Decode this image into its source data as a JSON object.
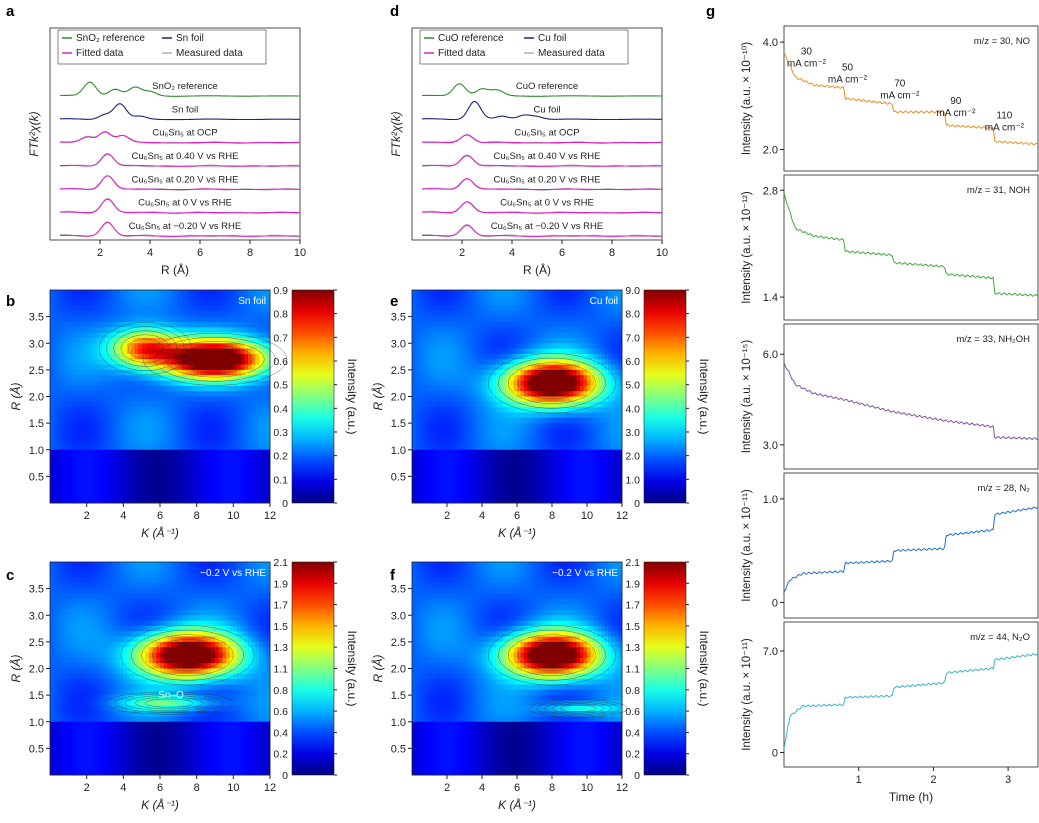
{
  "figure": {
    "panel_labels": [
      "a",
      "b",
      "c",
      "d",
      "e",
      "f",
      "g"
    ]
  },
  "chart_data": [
    {
      "panel": "a",
      "type": "line",
      "xlabel": "R (Å)",
      "ylabel": "FTk²χ(k)",
      "xlim": [
        0,
        10
      ],
      "xticks": [
        2,
        4,
        6,
        8,
        10
      ],
      "legend": [
        {
          "label": "SnO₂ reference",
          "color": "#2e8b2e"
        },
        {
          "label": "Sn foil",
          "color": "#1a237e"
        },
        {
          "label": "Fitted data",
          "color": "#e020c0"
        },
        {
          "label": "Measured data",
          "color": "#b0b0b0"
        }
      ],
      "series": [
        {
          "name": "SnO₂ reference",
          "color": "#2e8b2e",
          "peaks": [
            [
              1.6,
              1.0
            ],
            [
              2.6,
              0.5
            ],
            [
              3.4,
              0.6
            ],
            [
              4.0,
              0.3
            ]
          ]
        },
        {
          "name": "Sn foil",
          "color": "#1a237e",
          "peaks": [
            [
              2.2,
              0.35
            ],
            [
              2.8,
              1.1
            ],
            [
              3.6,
              0.2
            ]
          ]
        },
        {
          "name": "Cu₆Sn₅ at OCP",
          "color": "#e020c0",
          "peaks": [
            [
              1.5,
              0.4
            ],
            [
              2.2,
              0.8
            ],
            [
              2.9,
              0.5
            ]
          ]
        },
        {
          "name": "Cu₆Sn₅ at 0.40 V vs RHE",
          "color": "#e020c0",
          "peaks": [
            [
              2.3,
              0.9
            ]
          ]
        },
        {
          "name": "Cu₆Sn₅ at 0.20 V vs RHE",
          "color": "#e020c0",
          "peaks": [
            [
              2.3,
              1.0
            ]
          ]
        },
        {
          "name": "Cu₆Sn₅ at 0 V vs RHE",
          "color": "#e020c0",
          "peaks": [
            [
              2.3,
              1.0
            ]
          ]
        },
        {
          "name": "Cu₆Sn₅ at −0.20 V vs RHE",
          "color": "#e020c0",
          "peaks": [
            [
              2.3,
              1.0
            ]
          ]
        }
      ]
    },
    {
      "panel": "d",
      "type": "line",
      "xlabel": "R (Å)",
      "ylabel": "FTk²χ(k)",
      "xlim": [
        0,
        10
      ],
      "xticks": [
        2,
        4,
        6,
        8,
        10
      ],
      "legend": [
        {
          "label": "CuO reference",
          "color": "#2e8b2e"
        },
        {
          "label": "Cu foil",
          "color": "#1a237e"
        },
        {
          "label": "Fitted data",
          "color": "#e020c0"
        },
        {
          "label": "Measured data",
          "color": "#b0b0b0"
        }
      ],
      "series": [
        {
          "name": "CuO reference",
          "color": "#2e8b2e",
          "peaks": [
            [
              1.9,
              0.9
            ],
            [
              2.8,
              0.5
            ],
            [
              3.4,
              0.4
            ]
          ]
        },
        {
          "name": "Cu foil",
          "color": "#1a237e",
          "peaks": [
            [
              2.5,
              1.3
            ],
            [
              3.6,
              0.2
            ],
            [
              4.5,
              0.3
            ],
            [
              5.0,
              0.2
            ]
          ]
        },
        {
          "name": "Cu₆Sn₅ at OCP",
          "color": "#e020c0",
          "peaks": [
            [
              2.2,
              0.6
            ]
          ]
        },
        {
          "name": "Cu₆Sn₅ at 0.40 V vs RHE",
          "color": "#e020c0",
          "peaks": [
            [
              2.2,
              0.8
            ]
          ]
        },
        {
          "name": "Cu₆Sn₅ at 0.20 V vs RHE",
          "color": "#e020c0",
          "peaks": [
            [
              2.2,
              0.8
            ]
          ]
        },
        {
          "name": "Cu₆Sn₅ at 0 V vs RHE",
          "color": "#e020c0",
          "peaks": [
            [
              2.2,
              0.8
            ]
          ]
        },
        {
          "name": "Cu₆Sn₅ at −0.20 V vs RHE",
          "color": "#e020c0",
          "peaks": [
            [
              2.2,
              0.8
            ]
          ]
        }
      ]
    },
    {
      "panel": "b",
      "type": "heatmap",
      "annotation": "Sn foil",
      "xlabel": "K (Å⁻¹)",
      "ylabel": "R (Å)",
      "colorbar_label": "Intensity (a.u.)",
      "xlim": [
        0,
        12
      ],
      "ylim": [
        0,
        4
      ],
      "xticks": [
        2,
        4,
        6,
        8,
        10,
        12
      ],
      "yticks": [
        0.5,
        1.0,
        1.5,
        2.0,
        2.5,
        3.0,
        3.5
      ],
      "colorbar_ticks": [
        "0",
        "0.1",
        "0.2",
        "0.3",
        "0.4",
        "0.5",
        "0.6",
        "0.7",
        "0.8",
        "0.9"
      ],
      "zlim": [
        0,
        0.9
      ],
      "blobs": [
        {
          "k": 9.0,
          "r": 2.7,
          "v": 0.9,
          "sk": 2.8,
          "sr": 0.35
        },
        {
          "k": 5.2,
          "r": 2.9,
          "v": 0.55,
          "sk": 1.8,
          "sr": 0.35
        }
      ]
    },
    {
      "panel": "e",
      "type": "heatmap",
      "annotation": "Cu foil",
      "xlabel": "K (Å⁻¹)",
      "ylabel": "R (Å)",
      "colorbar_label": "Intensity (a.u.)",
      "xlim": [
        0,
        12
      ],
      "ylim": [
        0,
        4
      ],
      "xticks": [
        2,
        4,
        6,
        8,
        10,
        12
      ],
      "yticks": [
        0.5,
        1.0,
        1.5,
        2.0,
        2.5,
        3.0,
        3.5
      ],
      "colorbar_ticks": [
        "0",
        "1.0",
        "2.0",
        "3.0",
        "4.0",
        "5.0",
        "6.0",
        "7.0",
        "8.0",
        "9.0"
      ],
      "zlim": [
        0,
        9.0
      ],
      "blobs": [
        {
          "k": 8.0,
          "r": 2.25,
          "v": 9.0,
          "sk": 2.6,
          "sr": 0.4
        }
      ]
    },
    {
      "panel": "c",
      "type": "heatmap",
      "annotation": "−0.2 V vs RHE",
      "inner_label": "Sn–O",
      "xlabel": "K (Å⁻¹)",
      "ylabel": "R (Å)",
      "colorbar_label": "Intensity (a.u.)",
      "xlim": [
        0,
        12
      ],
      "ylim": [
        0,
        4
      ],
      "xticks": [
        2,
        4,
        6,
        8,
        10,
        12
      ],
      "yticks": [
        0.5,
        1.0,
        1.5,
        2.0,
        2.5,
        3.0,
        3.5
      ],
      "colorbar_ticks": [
        "0",
        "0.2",
        "0.4",
        "0.6",
        "0.8",
        "1.1",
        "1.3",
        "1.5",
        "1.7",
        "1.9",
        "2.1"
      ],
      "zlim": [
        0,
        2.1
      ],
      "blobs": [
        {
          "k": 7.5,
          "r": 2.25,
          "v": 2.1,
          "sk": 2.6,
          "sr": 0.4
        },
        {
          "k": 6.5,
          "r": 1.35,
          "v": 0.5,
          "sk": 2.5,
          "sr": 0.15
        }
      ]
    },
    {
      "panel": "f",
      "type": "heatmap",
      "annotation": "−0.2 V vs RHE",
      "xlabel": "K (Å⁻¹)",
      "ylabel": "R (Å)",
      "colorbar_label": "Intensity (a.u.)",
      "xlim": [
        0,
        12
      ],
      "ylim": [
        0,
        4
      ],
      "xticks": [
        2,
        4,
        6,
        8,
        10,
        12
      ],
      "yticks": [
        0.5,
        1.0,
        1.5,
        2.0,
        2.5,
        3.0,
        3.5
      ],
      "colorbar_ticks": [
        "0",
        "0.2",
        "0.4",
        "0.6",
        "0.8",
        "1.1",
        "1.3",
        "1.5",
        "1.7",
        "1.9",
        "2.1"
      ],
      "zlim": [
        0,
        2.1
      ],
      "blobs": [
        {
          "k": 8.0,
          "r": 2.25,
          "v": 2.1,
          "sk": 2.6,
          "sr": 0.4
        },
        {
          "k": 9.5,
          "r": 1.25,
          "v": 0.45,
          "sk": 2.0,
          "sr": 0.12
        }
      ]
    },
    {
      "panel": "g",
      "type": "line",
      "xlabel": "Time (h)",
      "xlim": [
        0,
        3.4
      ],
      "xticks": [
        1,
        2,
        3
      ],
      "subplots": [
        {
          "label": "m/z = 30, NO",
          "ylabel": "Intensity (a.u. × 10⁻¹⁰)",
          "color": "#f08c1e",
          "ylim": [
            1.6,
            4.3
          ],
          "yticks": [
            2.0,
            4.0
          ],
          "x": [
            0,
            0.15,
            0.4,
            0.8,
            0.82,
            1.45,
            1.47,
            2.15,
            2.17,
            2.8,
            2.82,
            3.4
          ],
          "y": [
            3.8,
            3.35,
            3.2,
            3.15,
            2.95,
            2.85,
            2.7,
            2.7,
            2.45,
            2.4,
            2.15,
            2.1
          ],
          "annotations": [
            "30 mA cm⁻²",
            "50 mA cm⁻²",
            "70 mA cm⁻²",
            "90 mA cm⁻²",
            "110 mA cm⁻²"
          ]
        },
        {
          "label": "m/z = 31, NOH",
          "ylabel": "Intensity (a.u. × 10⁻¹²)",
          "color": "#3aaa3a",
          "ylim": [
            1.1,
            3.0
          ],
          "yticks": [
            1.4,
            2.8
          ],
          "x": [
            0,
            0.15,
            0.4,
            0.8,
            0.82,
            1.45,
            1.47,
            2.15,
            2.17,
            2.8,
            2.82,
            3.4
          ],
          "y": [
            2.75,
            2.3,
            2.2,
            2.15,
            2.0,
            1.95,
            1.85,
            1.8,
            1.7,
            1.65,
            1.45,
            1.42
          ]
        },
        {
          "label": "m/z = 33, NH₂OH",
          "ylabel": "Intensity (a.u. × 10⁻¹⁵)",
          "color": "#7d4fa0",
          "ylim": [
            2.2,
            7.0
          ],
          "yticks": [
            3.0,
            6.0
          ],
          "x": [
            0,
            0.15,
            0.4,
            0.8,
            1.45,
            2.15,
            2.8,
            2.82,
            3.4
          ],
          "y": [
            5.7,
            5.0,
            4.7,
            4.5,
            4.1,
            3.8,
            3.6,
            3.25,
            3.2
          ]
        },
        {
          "label": "m/z = 28, N₂",
          "ylabel": "Intensity (a.u. × 10⁻¹¹)",
          "color": "#1f6fcf",
          "ylim": [
            -0.15,
            1.25
          ],
          "yticks": [
            0,
            1.0
          ],
          "x": [
            0,
            0.08,
            0.25,
            0.8,
            0.82,
            1.45,
            1.47,
            2.15,
            2.17,
            2.8,
            2.82,
            3.4
          ],
          "y": [
            0.1,
            0.22,
            0.28,
            0.3,
            0.38,
            0.4,
            0.5,
            0.52,
            0.65,
            0.7,
            0.85,
            0.92
          ]
        },
        {
          "label": "m/z = 44, N₂O",
          "ylabel": "Intensity (a.u. × 10⁻¹¹)",
          "color": "#3ab5c9",
          "ylim": [
            -1.0,
            9.0
          ],
          "yticks": [
            0,
            7.0
          ],
          "x": [
            0,
            0.08,
            0.25,
            0.8,
            0.82,
            1.45,
            1.47,
            2.15,
            2.17,
            2.8,
            2.82,
            3.4
          ],
          "y": [
            0.3,
            2.5,
            3.2,
            3.3,
            3.8,
            3.9,
            4.5,
            4.8,
            5.5,
            5.8,
            6.4,
            6.8
          ]
        }
      ]
    }
  ]
}
